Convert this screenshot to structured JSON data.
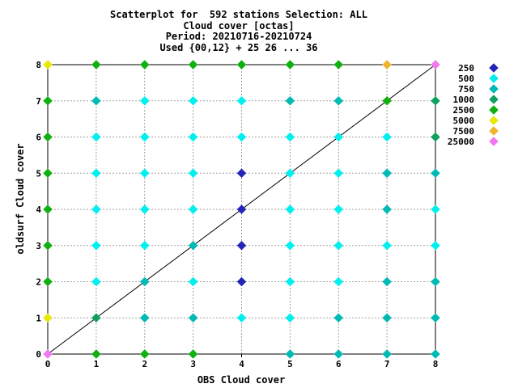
{
  "header": {
    "line1": "Scatterplot for  592 stations Selection: ALL",
    "line2": "Cloud cover [octas]",
    "line3": "Period: 20210716-20210724",
    "line4": "Used {00,12} + 25 26 ... 36"
  },
  "chart_data": {
    "type": "scatter",
    "xlabel": "OBS Cloud cover",
    "ylabel": "oldsurf Cloud cover",
    "xlim": [
      0,
      8
    ],
    "ylim": [
      0,
      8
    ],
    "xticks": [
      0,
      1,
      2,
      3,
      4,
      5,
      6,
      7,
      8
    ],
    "yticks": [
      0,
      1,
      2,
      3,
      4,
      5,
      6,
      7,
      8
    ],
    "grid": true,
    "reference_line": "y=x",
    "legend_position": "right",
    "series": [
      {
        "name": "250",
        "color": "#2424b8",
        "points": [
          [
            4,
            5
          ],
          [
            4,
            4
          ],
          [
            4,
            3
          ],
          [
            4,
            2
          ]
        ]
      },
      {
        "name": "500",
        "color": "#00f0f0",
        "points": [
          [
            1,
            6
          ],
          [
            1,
            5
          ],
          [
            1,
            4
          ],
          [
            1,
            3
          ],
          [
            1,
            2
          ],
          [
            2,
            7
          ],
          [
            2,
            6
          ],
          [
            2,
            5
          ],
          [
            2,
            4
          ],
          [
            2,
            3
          ],
          [
            3,
            7
          ],
          [
            3,
            6
          ],
          [
            3,
            5
          ],
          [
            3,
            4
          ],
          [
            3,
            2
          ],
          [
            4,
            7
          ],
          [
            4,
            6
          ],
          [
            4,
            1
          ],
          [
            5,
            6
          ],
          [
            5,
            5
          ],
          [
            5,
            4
          ],
          [
            5,
            3
          ],
          [
            5,
            2
          ],
          [
            5,
            1
          ],
          [
            6,
            6
          ],
          [
            6,
            5
          ],
          [
            6,
            4
          ],
          [
            6,
            3
          ],
          [
            6,
            2
          ],
          [
            7,
            6
          ],
          [
            7,
            5
          ],
          [
            7,
            3
          ],
          [
            8,
            4
          ],
          [
            8,
            3
          ]
        ]
      },
      {
        "name": "750",
        "color": "#00bab4",
        "points": [
          [
            1,
            7
          ],
          [
            2,
            2
          ],
          [
            2,
            1
          ],
          [
            3,
            3
          ],
          [
            3,
            1
          ],
          [
            5,
            7
          ],
          [
            5,
            0
          ],
          [
            6,
            7
          ],
          [
            6,
            1
          ],
          [
            6,
            0
          ],
          [
            7,
            5
          ],
          [
            7,
            4
          ],
          [
            7,
            2
          ],
          [
            7,
            1
          ],
          [
            7,
            0
          ],
          [
            8,
            5
          ],
          [
            8,
            2
          ],
          [
            8,
            1
          ],
          [
            8,
            0
          ]
        ]
      },
      {
        "name": "1000",
        "color": "#12a060",
        "points": [
          [
            1,
            1
          ],
          [
            8,
            6
          ],
          [
            8,
            7
          ]
        ]
      },
      {
        "name": "2500",
        "color": "#10b010",
        "points": [
          [
            0,
            7
          ],
          [
            0,
            6
          ],
          [
            0,
            5
          ],
          [
            0,
            4
          ],
          [
            0,
            3
          ],
          [
            0,
            2
          ],
          [
            1,
            8
          ],
          [
            1,
            0
          ],
          [
            2,
            8
          ],
          [
            2,
            0
          ],
          [
            3,
            8
          ],
          [
            3,
            0
          ],
          [
            4,
            8
          ],
          [
            5,
            8
          ],
          [
            6,
            8
          ],
          [
            7,
            7
          ]
        ]
      },
      {
        "name": "5000",
        "color": "#e8e800",
        "points": [
          [
            0,
            8
          ],
          [
            0,
            1
          ]
        ]
      },
      {
        "name": "7500",
        "color": "#f0b428",
        "points": [
          [
            7,
            8
          ]
        ]
      },
      {
        "name": "25000",
        "color": "#f078f0",
        "points": [
          [
            8,
            8
          ],
          [
            0,
            0
          ]
        ]
      }
    ]
  }
}
